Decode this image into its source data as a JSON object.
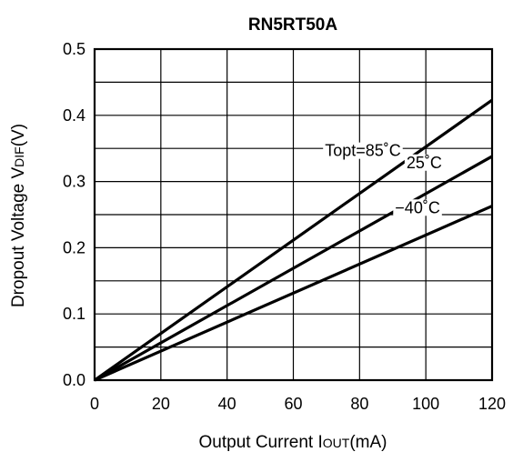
{
  "chart_data": {
    "type": "line",
    "title": "RN5RT50A",
    "xlabel": {
      "main": "Output Current I",
      "sub": "OUT",
      "unit": "(mA)"
    },
    "ylabel": {
      "main": "Dropout Voltage V",
      "sub": "DIF",
      "unit": "(V)"
    },
    "xlim": [
      0,
      120
    ],
    "ylim": [
      0,
      0.5
    ],
    "x_ticks": [
      0,
      20,
      40,
      60,
      80,
      100,
      120
    ],
    "x_tick_labels": [
      "0",
      "20",
      "40",
      "60",
      "80",
      "100",
      "120"
    ],
    "y_ticks": [
      0,
      0.1,
      0.2,
      0.3,
      0.4,
      0.5
    ],
    "y_tick_labels": [
      "0.0",
      "0.1",
      "0.2",
      "0.3",
      "0.4",
      "0.5"
    ],
    "grid": true,
    "grid_x_step": 20,
    "grid_y_step": 0.05,
    "series": [
      {
        "name": "Topt=85˚C",
        "x": [
          0,
          120
        ],
        "y": [
          0,
          0.423
        ]
      },
      {
        "name": "25˚C",
        "x": [
          0,
          120
        ],
        "y": [
          0,
          0.338
        ]
      },
      {
        "name": "−40˚C",
        "x": [
          0,
          120
        ],
        "y": [
          0,
          0.263
        ]
      }
    ],
    "annotations": [
      {
        "text": "Topt=85˚C",
        "series": 0,
        "x": 81,
        "y": 0.348
      },
      {
        "text": "25˚C",
        "series": 1,
        "x": 99.5,
        "y": 0.33
      },
      {
        "text": "−40˚C",
        "series": 2,
        "x": 97.5,
        "y": 0.262
      }
    ]
  }
}
